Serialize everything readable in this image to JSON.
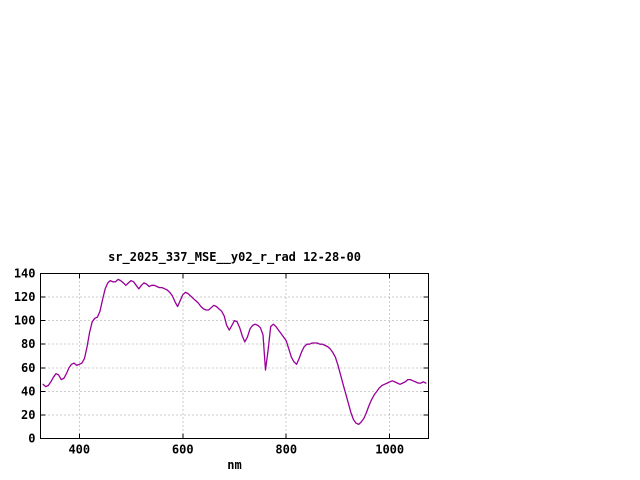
{
  "window": {
    "background": "#ffffff",
    "text_color": "#000000",
    "grid_color": "#9c9c9c"
  },
  "chart_data": {
    "type": "line",
    "title": "sr_2025_337_MSE__y02_r_rad 12-28-00",
    "xlabel": "nm",
    "ylabel": "",
    "xlim": [
      325,
      1075
    ],
    "ylim": [
      0,
      140
    ],
    "xticks": [
      400,
      600,
      800,
      1000
    ],
    "yticks": [
      0,
      20,
      40,
      60,
      80,
      100,
      120,
      140
    ],
    "grid": true,
    "legend_position": "none",
    "line_color": "#990099",
    "series": [
      {
        "name": "sr_2025_337_MSE__y02_r_rad",
        "x": [
          330,
          335,
          340,
          345,
          350,
          355,
          360,
          365,
          370,
          375,
          380,
          385,
          390,
          395,
          400,
          405,
          410,
          415,
          420,
          425,
          430,
          435,
          440,
          445,
          450,
          455,
          460,
          465,
          470,
          475,
          480,
          485,
          490,
          495,
          500,
          505,
          510,
          515,
          520,
          525,
          530,
          535,
          540,
          545,
          550,
          555,
          560,
          565,
          570,
          575,
          580,
          585,
          590,
          595,
          600,
          605,
          610,
          615,
          620,
          625,
          630,
          635,
          640,
          645,
          650,
          655,
          660,
          665,
          670,
          675,
          680,
          685,
          690,
          695,
          700,
          705,
          710,
          715,
          720,
          725,
          730,
          735,
          740,
          745,
          750,
          755,
          760,
          765,
          770,
          775,
          780,
          785,
          790,
          795,
          800,
          805,
          810,
          815,
          820,
          825,
          830,
          835,
          840,
          845,
          850,
          855,
          860,
          865,
          870,
          875,
          880,
          885,
          890,
          895,
          900,
          905,
          910,
          915,
          920,
          925,
          930,
          935,
          940,
          945,
          950,
          955,
          960,
          965,
          970,
          975,
          980,
          985,
          990,
          995,
          1000,
          1005,
          1010,
          1015,
          1020,
          1025,
          1030,
          1035,
          1040,
          1045,
          1050,
          1055,
          1060,
          1065,
          1070
        ],
        "y": [
          46,
          44,
          45,
          48,
          52,
          55,
          54,
          50,
          51,
          55,
          60,
          63,
          64,
          62,
          63,
          64,
          68,
          78,
          90,
          99,
          102,
          103,
          108,
          118,
          127,
          132,
          134,
          133,
          133,
          135,
          134,
          132,
          130,
          132,
          134,
          133,
          130,
          127,
          130,
          132,
          131,
          129,
          130,
          130,
          129,
          128,
          128,
          127,
          126,
          124,
          121,
          116,
          112,
          117,
          122,
          124,
          123,
          121,
          119,
          117,
          115,
          112,
          110,
          109,
          109,
          111,
          113,
          112,
          110,
          108,
          104,
          96,
          92,
          96,
          100,
          99,
          94,
          87,
          82,
          86,
          93,
          96,
          97,
          96,
          94,
          88,
          58,
          75,
          95,
          97,
          95,
          92,
          89,
          86,
          83,
          76,
          69,
          65,
          63,
          68,
          74,
          78,
          80,
          80,
          81,
          81,
          81,
          80,
          80,
          79,
          78,
          76,
          73,
          69,
          62,
          54,
          46,
          38,
          30,
          22,
          16,
          13,
          12,
          14,
          17,
          22,
          28,
          33,
          37,
          40,
          43,
          45,
          46,
          47,
          48,
          49,
          48,
          47,
          46,
          47,
          48,
          50,
          50,
          49,
          48,
          47,
          47,
          48,
          47
        ]
      }
    ]
  }
}
